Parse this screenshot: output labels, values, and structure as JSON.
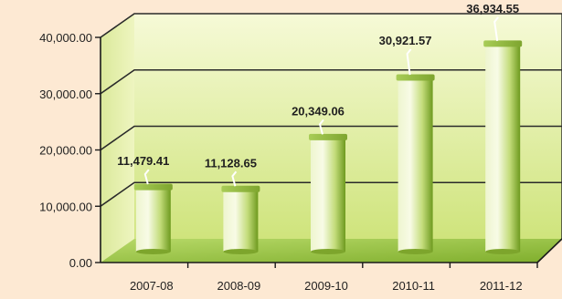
{
  "chart_data": {
    "type": "bar",
    "categories": [
      "2007-08",
      "2008-09",
      "2009-10",
      "2010-11",
      "2011-12"
    ],
    "values": [
      11479.41,
      11128.65,
      20349.06,
      30921.57,
      36934.55
    ],
    "value_labels": [
      "11,479.41",
      "11,128.65",
      "20,349.06",
      "30,921.57",
      "36,934.55"
    ],
    "ylim": [
      0,
      40000
    ],
    "yticks": [
      0,
      10000,
      20000,
      30000,
      40000
    ],
    "ytick_labels": [
      "0.00",
      "10,000.00",
      "20,000.00",
      "30,000.00",
      "40,000.00"
    ],
    "grid": true,
    "legend": "none",
    "colors": {
      "page_background": "#fde9d3",
      "back_wall_top": "#f6fad7",
      "back_wall_bottom": "#cfe47c",
      "floor": "#a9cf56",
      "bar_light": "#f4f8dc",
      "bar_mid": "#c3dc7a",
      "bar_dark": "#6e9a1f",
      "bar_cap": "#8db33a",
      "axis": "#1a1a1a"
    }
  }
}
